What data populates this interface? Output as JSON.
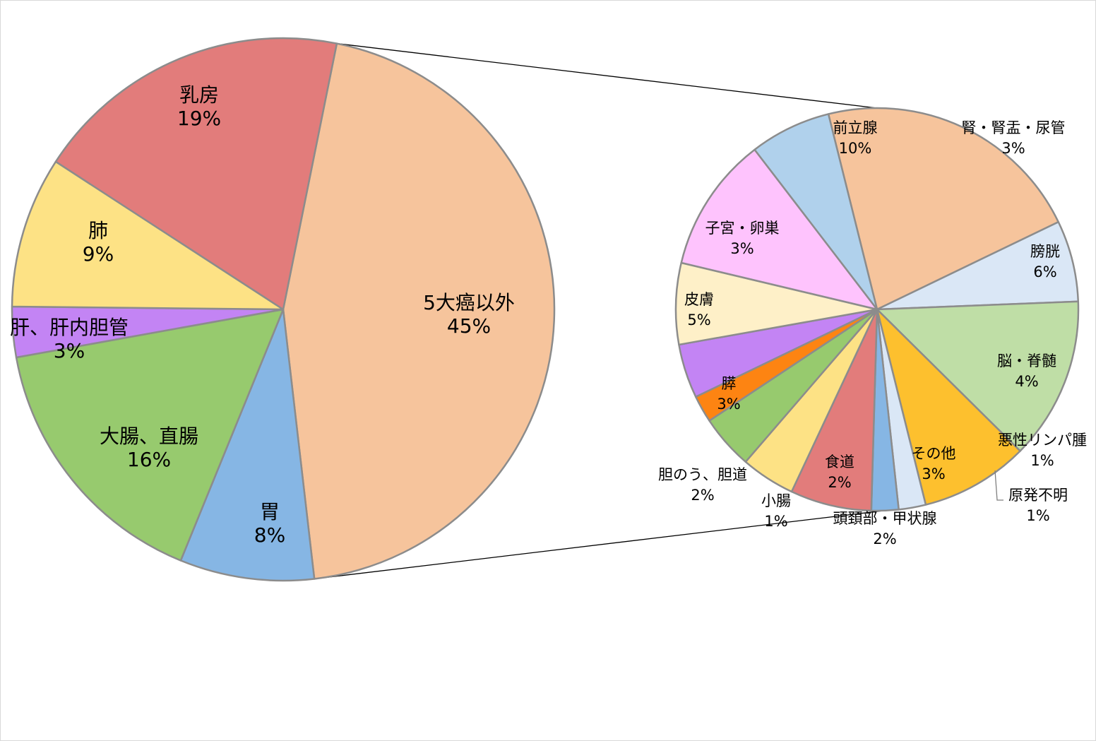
{
  "chart_data": {
    "type": "pie",
    "subtype": "pie-of-pie",
    "title": "",
    "main": {
      "slices": [
        {
          "name": "5大癌以外",
          "value": 45,
          "label": "45%",
          "color": "#f6c49c"
        },
        {
          "name": "胃",
          "value": 8,
          "label": "8%",
          "color": "#86b6e4"
        },
        {
          "name": "大腸、直腸",
          "value": 16,
          "label": "16%",
          "color": "#97ca6e"
        },
        {
          "name": "肝、肝内胆管",
          "value": 3,
          "label": "3%",
          "color": "#c384f4"
        },
        {
          "name": "肺",
          "value": 9,
          "label": "9%",
          "color": "#fde285"
        },
        {
          "name": "乳房",
          "value": 19,
          "label": "19%",
          "color": "#e27c7b"
        }
      ]
    },
    "secondary": {
      "parent": "5大癌以外",
      "slices": [
        {
          "name": "前立腺",
          "value": 10,
          "label": "10%",
          "color": "#f6c49c"
        },
        {
          "name": "腎・腎盂・尿管",
          "value": 3,
          "label": "3%",
          "color": "#dae7f6"
        },
        {
          "name": "膀胱",
          "value": 6,
          "label": "6%",
          "color": "#bfdea6"
        },
        {
          "name": "脳・脊髄",
          "value": 4,
          "label": "4%",
          "color": "#fdc02e"
        },
        {
          "name": "悪性リンパ腫",
          "value": 1,
          "label": "1%",
          "color": "#dae7f6"
        },
        {
          "name": "原発不明",
          "value": 1,
          "label": "1%",
          "color": "#86b6e4"
        },
        {
          "name": "その他",
          "value": 3,
          "label": "3%",
          "color": "#e27c7b"
        },
        {
          "name": "頭頚部・甲状腺",
          "value": 2,
          "label": "2%",
          "color": "#fde285"
        },
        {
          "name": "食道",
          "value": 2,
          "label": "2%",
          "color": "#97ca6e"
        },
        {
          "name": "小腸",
          "value": 1,
          "label": "1%",
          "color": "#fd8412"
        },
        {
          "name": "胆のう、胆道",
          "value": 2,
          "label": "2%",
          "color": "#c384f4"
        },
        {
          "name": "膵",
          "value": 3,
          "label": "3%",
          "color": "#fef0c8"
        },
        {
          "name": "皮膚",
          "value": 5,
          "label": "5%",
          "color": "#fec3fd"
        },
        {
          "name": "子宮・卵巣",
          "value": 3,
          "label": "3%",
          "color": "#b0d1ec"
        }
      ]
    },
    "colors": {
      "slice_border": "#8c8c8c",
      "connector": "#000000",
      "frame": "#d9d9d9"
    }
  }
}
